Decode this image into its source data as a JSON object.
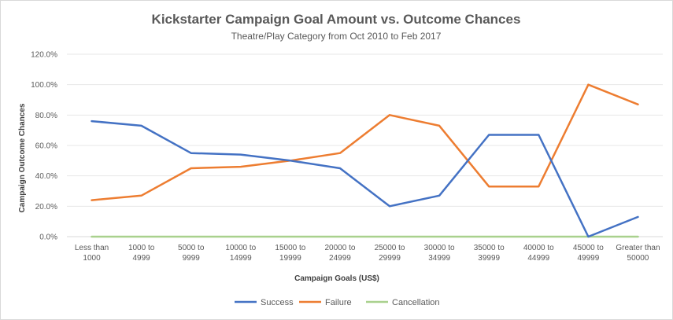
{
  "chart_data": {
    "type": "line",
    "title": "Kickstarter Campaign Goal Amount vs. Outcome Chances",
    "subtitle": "Theatre/Play Category from Oct 2010 to Feb 2017",
    "xlabel": "Campaign Goals (US$)",
    "ylabel": "Campaign Outcome Chances",
    "ylim": [
      0,
      1.2
    ],
    "yticks": [
      "0.0%",
      "20.0%",
      "40.0%",
      "60.0%",
      "80.0%",
      "100.0%",
      "120.0%"
    ],
    "grid": true,
    "legend_position": "bottom",
    "categories": [
      [
        "Less than",
        "1000"
      ],
      [
        "1000 to",
        "4999"
      ],
      [
        "5000 to",
        "9999"
      ],
      [
        "10000 to",
        "14999"
      ],
      [
        "15000 to",
        "19999"
      ],
      [
        "20000 to",
        "24999"
      ],
      [
        "25000 to",
        "29999"
      ],
      [
        "30000 to",
        "34999"
      ],
      [
        "35000 to",
        "39999"
      ],
      [
        "40000 to",
        "44999"
      ],
      [
        "45000 to",
        "49999"
      ],
      [
        "Greater than",
        "50000"
      ]
    ],
    "series": [
      {
        "name": "Success",
        "color": "#4472c4",
        "values": [
          0.76,
          0.73,
          0.55,
          0.54,
          0.5,
          0.45,
          0.2,
          0.27,
          0.67,
          0.67,
          0.0,
          0.13
        ]
      },
      {
        "name": "Failure",
        "color": "#ed7d31",
        "values": [
          0.24,
          0.27,
          0.45,
          0.46,
          0.5,
          0.55,
          0.8,
          0.73,
          0.33,
          0.33,
          1.0,
          0.87
        ]
      },
      {
        "name": "Cancellation",
        "color": "#a9d18e",
        "values": [
          0,
          0,
          0,
          0,
          0,
          0,
          0,
          0,
          0,
          0,
          0,
          0
        ]
      }
    ]
  }
}
